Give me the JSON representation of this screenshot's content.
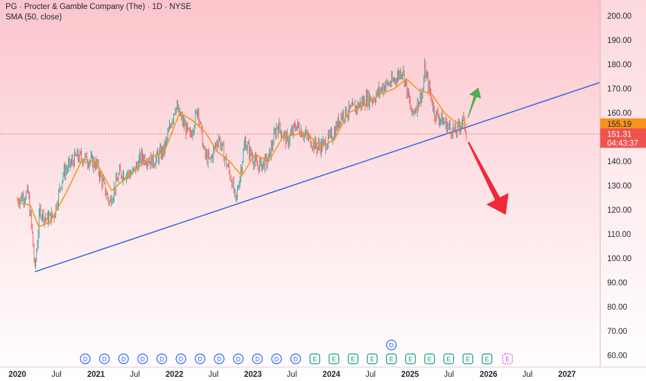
{
  "header": {
    "title": "PG · Procter & Gamble Company (The) · 1D · NYSE",
    "indicator": "SMA (50, close)"
  },
  "colors": {
    "background_top": "#fbc5cb",
    "price_up": "#26a69a",
    "price_down": "#ef5350",
    "sma": "#f7931a",
    "trendline": "#2f5fe0",
    "arrow_up": "#4caf50",
    "arrow_down": "#f0283c",
    "dividend_marker": "#2962ff",
    "earnings_marker": "#089981",
    "earnings_upcoming": "#d442d4"
  },
  "price_axis": {
    "ticks": [
      "200.00",
      "190.00",
      "180.00",
      "170.00",
      "160.00",
      "150.00",
      "140.00",
      "130.00",
      "120.00",
      "110.00",
      "100.00",
      "90.00",
      "80.00",
      "70.00",
      "60.00"
    ],
    "sma_label": "155.19",
    "last_price_label": "151.31",
    "countdown_label": "04:43:37"
  },
  "time_axis": {
    "ticks": [
      {
        "label": "2020",
        "year": true
      },
      {
        "label": "Jul",
        "year": false
      },
      {
        "label": "2021",
        "year": true
      },
      {
        "label": "Jul",
        "year": false
      },
      {
        "label": "2022",
        "year": true
      },
      {
        "label": "Jul",
        "year": false
      },
      {
        "label": "2023",
        "year": true
      },
      {
        "label": "Jul",
        "year": false
      },
      {
        "label": "2024",
        "year": true
      },
      {
        "label": "Jul",
        "year": false
      },
      {
        "label": "2025",
        "year": true
      },
      {
        "label": "Jul",
        "year": false
      },
      {
        "label": "2026",
        "year": true
      },
      {
        "label": "Jul",
        "year": false
      },
      {
        "label": "2027",
        "year": true
      }
    ]
  },
  "events": {
    "dividend_letter": "D",
    "earnings_letter": "E",
    "sequence": [
      "D",
      "D",
      "D",
      "D",
      "D",
      "D",
      "D",
      "D",
      "D",
      "D",
      "D",
      "D",
      "E",
      "E",
      "E",
      "E",
      "E",
      "E",
      "E",
      "E",
      "E",
      "E"
    ],
    "upcoming_earnings_count": 1,
    "extra_dividend_above_index": 16
  },
  "chart_data": {
    "type": "candlestick",
    "symbol": "PG",
    "interval": "1D",
    "ylim": [
      55,
      207
    ],
    "x_range": [
      "2020-01-01",
      "2027-06-01"
    ],
    "series": [
      {
        "name": "PG",
        "approx_close_path": [
          [
            "2020-01-01",
            124
          ],
          [
            "2020-02-20",
            127
          ],
          [
            "2020-03-10",
            110
          ],
          [
            "2020-03-23",
            95
          ],
          [
            "2020-04-15",
            120
          ],
          [
            "2020-05-15",
            116
          ],
          [
            "2020-06-20",
            118
          ],
          [
            "2020-08-01",
            135
          ],
          [
            "2020-10-01",
            142
          ],
          [
            "2020-11-15",
            141
          ],
          [
            "2021-01-01",
            139
          ],
          [
            "2021-03-05",
            123
          ],
          [
            "2021-04-20",
            135
          ],
          [
            "2021-06-20",
            135
          ],
          [
            "2021-08-01",
            142
          ],
          [
            "2021-09-25",
            140
          ],
          [
            "2021-11-15",
            145
          ],
          [
            "2022-01-05",
            163
          ],
          [
            "2022-02-15",
            155
          ],
          [
            "2022-03-15",
            150
          ],
          [
            "2022-04-20",
            162
          ],
          [
            "2022-05-20",
            143
          ],
          [
            "2022-06-15",
            140
          ],
          [
            "2022-07-25",
            150
          ],
          [
            "2022-09-25",
            132
          ],
          [
            "2022-10-13",
            123
          ],
          [
            "2022-11-25",
            148
          ],
          [
            "2023-01-20",
            138
          ],
          [
            "2023-03-10",
            140
          ],
          [
            "2023-04-25",
            155
          ],
          [
            "2023-06-10",
            148
          ],
          [
            "2023-07-20",
            155
          ],
          [
            "2023-08-20",
            152
          ],
          [
            "2023-10-25",
            146
          ],
          [
            "2023-12-01",
            147
          ],
          [
            "2024-01-15",
            152
          ],
          [
            "2024-02-15",
            159
          ],
          [
            "2024-04-20",
            162
          ],
          [
            "2024-06-15",
            166
          ],
          [
            "2024-07-15",
            166
          ],
          [
            "2024-08-30",
            171
          ],
          [
            "2024-10-15",
            173
          ],
          [
            "2024-11-27",
            178
          ],
          [
            "2025-01-10",
            159
          ],
          [
            "2025-03-01",
            169
          ],
          [
            "2025-03-10",
            178
          ],
          [
            "2025-04-25",
            160
          ],
          [
            "2025-06-20",
            155
          ],
          [
            "2025-08-01",
            152
          ],
          [
            "2025-09-03",
            157
          ],
          [
            "2025-09-24",
            151.31
          ]
        ]
      },
      {
        "name": "SMA (50, close)",
        "values": [
          [
            "2020-01-01",
            123
          ],
          [
            "2020-03-01",
            122
          ],
          [
            "2020-04-10",
            113
          ],
          [
            "2020-06-01",
            115
          ],
          [
            "2020-08-15",
            127
          ],
          [
            "2020-10-30",
            141
          ],
          [
            "2021-01-01",
            140
          ],
          [
            "2021-03-15",
            128
          ],
          [
            "2021-06-01",
            134
          ],
          [
            "2021-09-01",
            141
          ],
          [
            "2021-11-15",
            144
          ],
          [
            "2022-01-25",
            160
          ],
          [
            "2022-03-25",
            157
          ],
          [
            "2022-05-25",
            152
          ],
          [
            "2022-07-20",
            144
          ],
          [
            "2022-09-15",
            140
          ],
          [
            "2022-11-10",
            134
          ],
          [
            "2023-01-10",
            143
          ],
          [
            "2023-03-15",
            140
          ],
          [
            "2023-05-20",
            150
          ],
          [
            "2023-07-15",
            151
          ],
          [
            "2023-09-01",
            152
          ],
          [
            "2023-11-15",
            146
          ],
          [
            "2024-01-15",
            149
          ],
          [
            "2024-03-20",
            160
          ],
          [
            "2024-06-01",
            163
          ],
          [
            "2024-08-20",
            168
          ],
          [
            "2024-10-20",
            170
          ],
          [
            "2024-12-15",
            174
          ],
          [
            "2025-02-15",
            169
          ],
          [
            "2025-04-10",
            168
          ],
          [
            "2025-06-10",
            160
          ],
          [
            "2025-08-01",
            156
          ],
          [
            "2025-09-24",
            155.19
          ]
        ]
      },
      {
        "name": "trendline",
        "points": [
          [
            "2020-03-23",
            94.5
          ],
          [
            "2027-06-01",
            172.5
          ]
        ]
      }
    ],
    "annotations": [
      {
        "type": "arrow",
        "direction": "up",
        "from": [
          "2025-09-27",
          158
        ],
        "to": [
          "2025-11-15",
          170.5
        ]
      },
      {
        "type": "arrow",
        "direction": "down",
        "from": [
          "2025-09-29",
          148
        ],
        "to": [
          "2026-03-22",
          118
        ]
      }
    ]
  }
}
